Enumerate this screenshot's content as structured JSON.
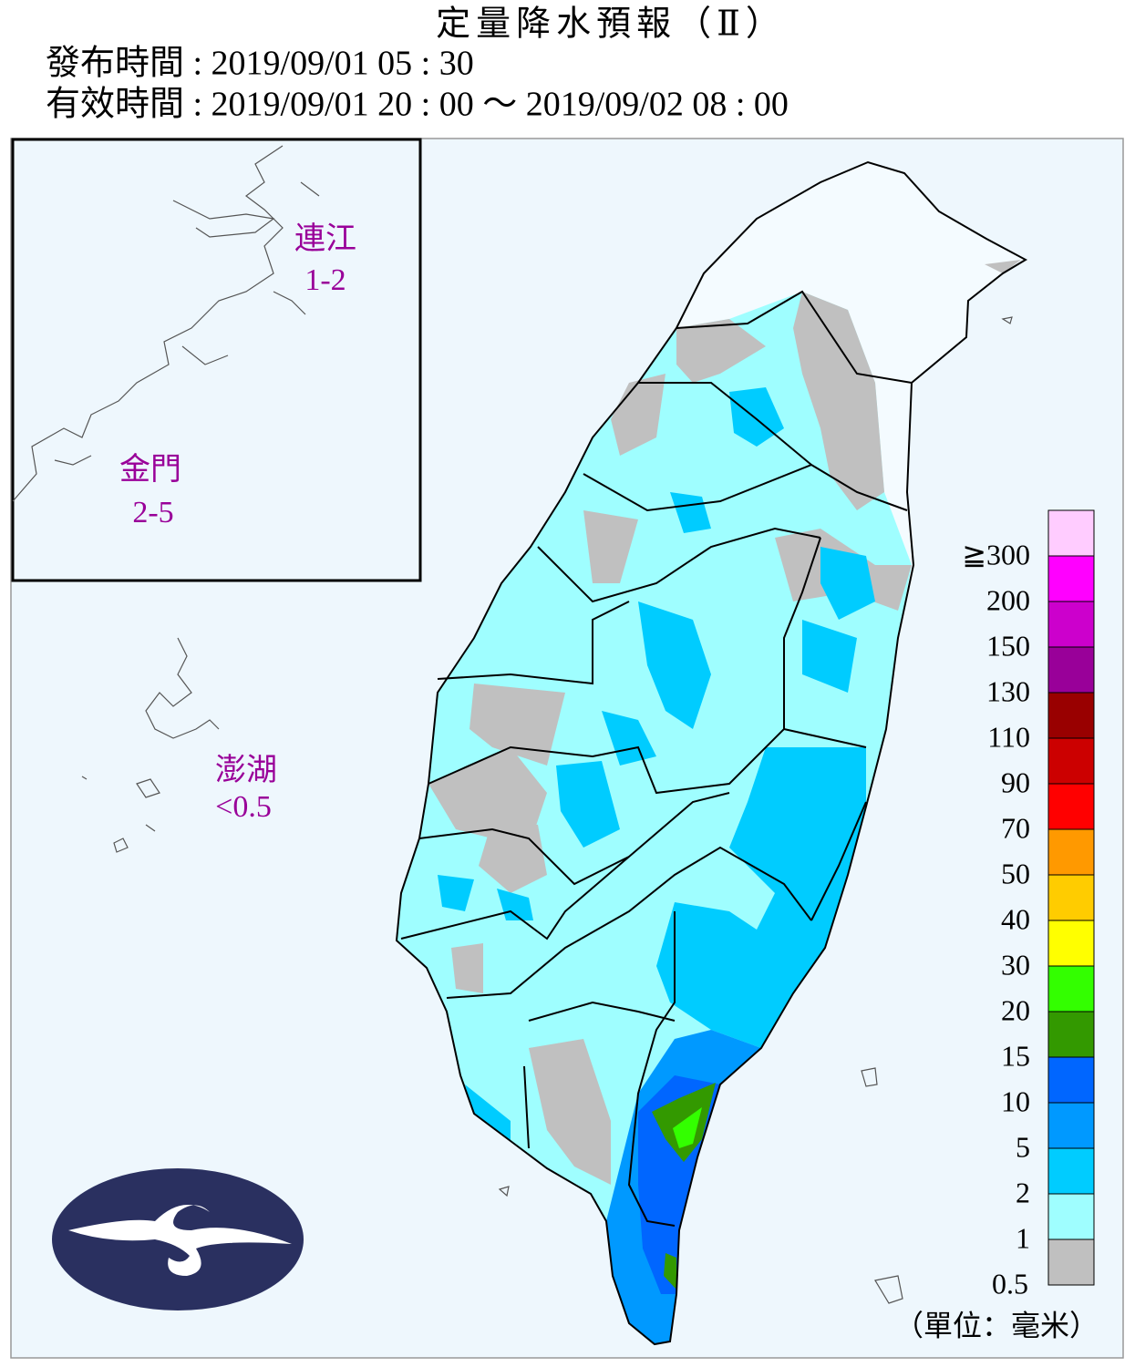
{
  "header": {
    "title": "定量降水預報（Ⅱ）",
    "issued": "發布時間 : 2019/09/01 05 : 30",
    "valid": "有效時間 : 2019/09/01 20 : 00 ～ 2019/09/02 08 : 00"
  },
  "regions": [
    {
      "name": "連江",
      "range": "1-2"
    },
    {
      "name": "金門",
      "range": "2-5"
    },
    {
      "name": "澎湖",
      "range": "<0.5"
    }
  ],
  "legend": {
    "thresholds": [
      "0.5",
      "1",
      "2",
      "5",
      "10",
      "15",
      "20",
      "30",
      "40",
      "50",
      "70",
      "90",
      "110",
      "130",
      "150",
      "200",
      "≧300"
    ],
    "colors": [
      "#c0c0c0",
      "#9ffeff",
      "#00ccff",
      "#0099ff",
      "#0066ff",
      "#339900",
      "#33ff00",
      "#ffff00",
      "#ffcc00",
      "#ff9900",
      "#ff0000",
      "#cc0000",
      "#990000",
      "#990099",
      "#cc00cc",
      "#ff00ff",
      "#ffccff"
    ],
    "unit": "（單位：毫米）"
  }
}
